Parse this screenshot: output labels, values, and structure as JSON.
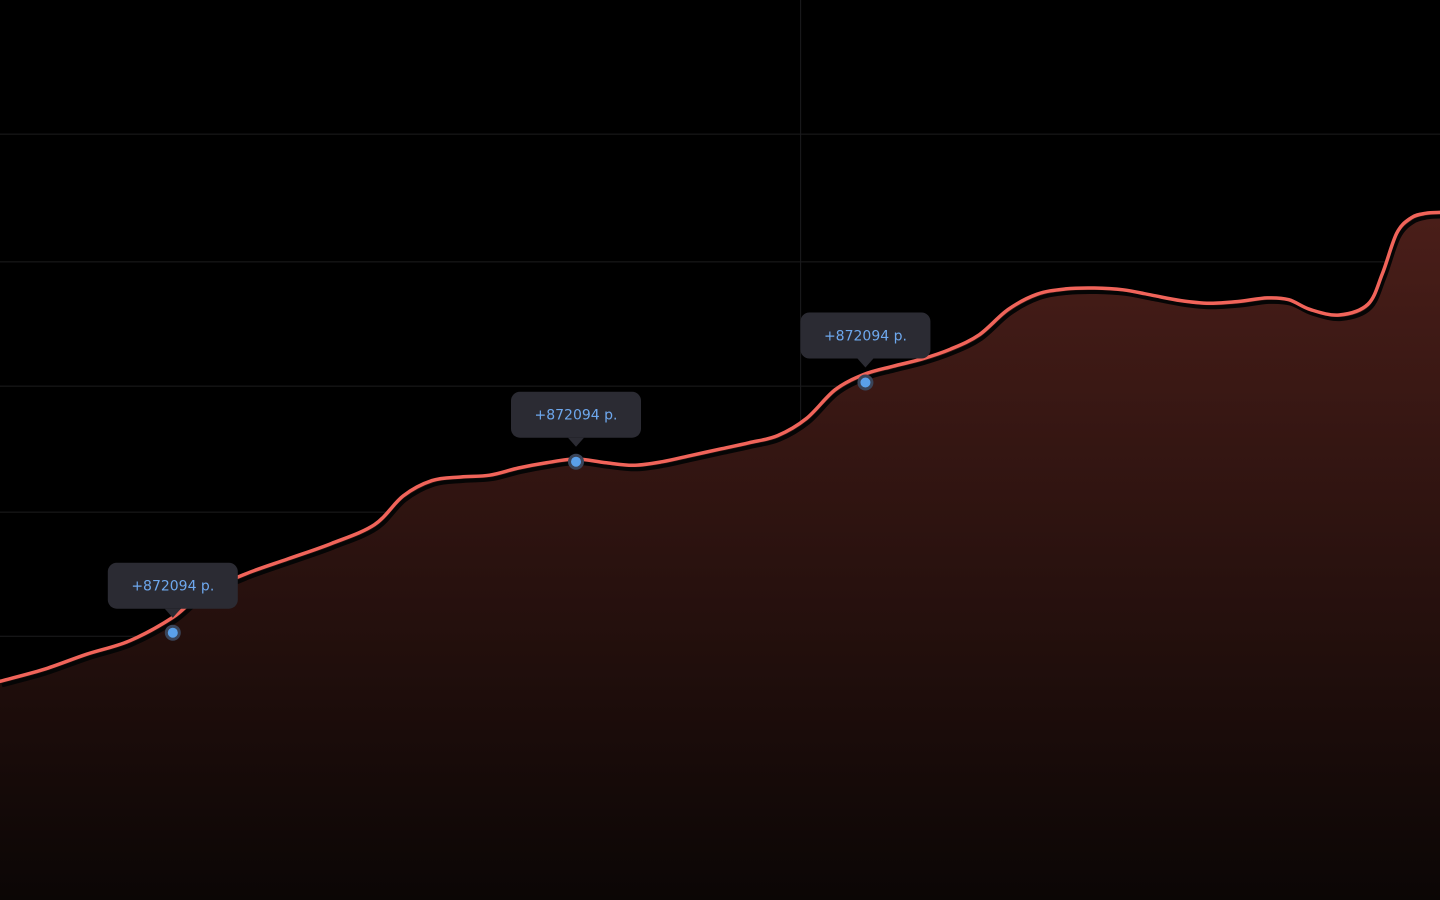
{
  "colors": {
    "background": "#000000",
    "grid": "#1c1c1e",
    "line": "#f0645a",
    "line_shadow": "#050505",
    "area_top": "#4a1e19",
    "area_bottom": "#0b0605",
    "marker_fill": "#5aa0ea",
    "marker_stroke": "#3a4458",
    "tooltip_bg": "#2b2b33",
    "tooltip_text": "#6ea8ee"
  },
  "chart_data": {
    "type": "area",
    "title": "",
    "xlabel": "",
    "ylabel": "",
    "xlim": [
      0,
      100
    ],
    "ylim": [
      0,
      100
    ],
    "grid": true,
    "grid_y": [
      15,
      29.3,
      43.1,
      57.1,
      70.9,
      85.1
    ],
    "grid_x": [
      55.6
    ],
    "series": [
      {
        "values": [
          [
            0,
            24.3
          ],
          [
            3,
            25.6
          ],
          [
            6,
            27.3
          ],
          [
            9,
            28.8
          ],
          [
            12,
            31.4
          ],
          [
            14,
            34.0
          ],
          [
            17,
            36.2
          ],
          [
            20,
            37.9
          ],
          [
            23,
            39.6
          ],
          [
            26,
            41.7
          ],
          [
            28,
            44.9
          ],
          [
            30,
            46.6
          ],
          [
            32,
            47.0
          ],
          [
            34,
            47.2
          ],
          [
            36,
            48.0
          ],
          [
            38,
            48.6
          ],
          [
            40,
            49.0
          ],
          [
            42,
            48.6
          ],
          [
            44,
            48.3
          ],
          [
            46,
            48.7
          ],
          [
            48,
            49.4
          ],
          [
            50,
            50.1
          ],
          [
            52,
            50.8
          ],
          [
            54,
            51.6
          ],
          [
            56,
            53.5
          ],
          [
            58,
            56.7
          ],
          [
            60,
            58.4
          ],
          [
            62,
            59.3
          ],
          [
            64,
            60.1
          ],
          [
            66,
            61.2
          ],
          [
            68,
            62.8
          ],
          [
            70,
            65.6
          ],
          [
            72,
            67.3
          ],
          [
            74,
            67.9
          ],
          [
            76,
            68.0
          ],
          [
            78,
            67.8
          ],
          [
            80,
            67.2
          ],
          [
            82,
            66.6
          ],
          [
            84,
            66.3
          ],
          [
            86,
            66.5
          ],
          [
            88,
            66.9
          ],
          [
            89.5,
            66.7
          ],
          [
            91,
            65.6
          ],
          [
            93,
            65.0
          ],
          [
            95,
            66.2
          ],
          [
            96,
            69.6
          ],
          [
            97,
            74.1
          ],
          [
            98,
            75.8
          ],
          [
            99,
            76.3
          ],
          [
            100,
            76.4
          ]
        ]
      }
    ],
    "annotations": [
      {
        "x": 12,
        "y": 29.7,
        "label": "+872094 р."
      },
      {
        "x": 40,
        "y": 48.7,
        "label": "+872094 р."
      },
      {
        "x": 60.1,
        "y": 57.5,
        "label": "+872094 р."
      }
    ]
  }
}
